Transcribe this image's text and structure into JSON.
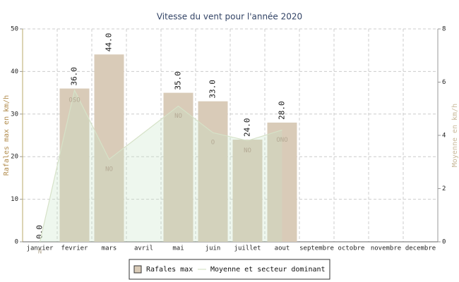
{
  "chart_data": {
    "type": "bar",
    "title": "Vitesse du vent pour l'année 2020",
    "ylabel": "Rafales max en km/h",
    "y2label": "Moyenne en km/h",
    "categories": [
      "janvier",
      "fevrier",
      "mars",
      "avril",
      "mai",
      "juin",
      "juillet",
      "aout",
      "septembre",
      "octobre",
      "novembre",
      "decembre"
    ],
    "series": [
      {
        "name": "Rafales max",
        "type": "bar",
        "color": "#d9cbb8",
        "values": [
          0,
          36,
          44,
          null,
          35,
          33,
          24,
          28,
          null,
          null,
          null,
          null
        ],
        "value_labels": [
          "0.0",
          "36.0",
          "44.0",
          null,
          "35.0",
          "33.0",
          "24.0",
          "28.0",
          null,
          null,
          null,
          null
        ]
      },
      {
        "name": "Moyenne et secteur dominant",
        "type": "area",
        "axis": "y2",
        "color": "#d6e2c8",
        "values": [
          0,
          5.7,
          3.1,
          4.1,
          5.1,
          4.1,
          3.8,
          4.2,
          null,
          null,
          null,
          null
        ],
        "directions": [
          "N",
          "OSO",
          "NO",
          null,
          "NO",
          "O",
          "NO",
          "ONO",
          null,
          null,
          null,
          null
        ]
      }
    ],
    "ylim": [
      0,
      50
    ],
    "yticks": [
      0,
      10,
      20,
      30,
      40,
      50
    ],
    "y2lim": [
      0,
      8
    ],
    "y2ticks": [
      0,
      2,
      4,
      6,
      8
    ],
    "grid": true
  }
}
